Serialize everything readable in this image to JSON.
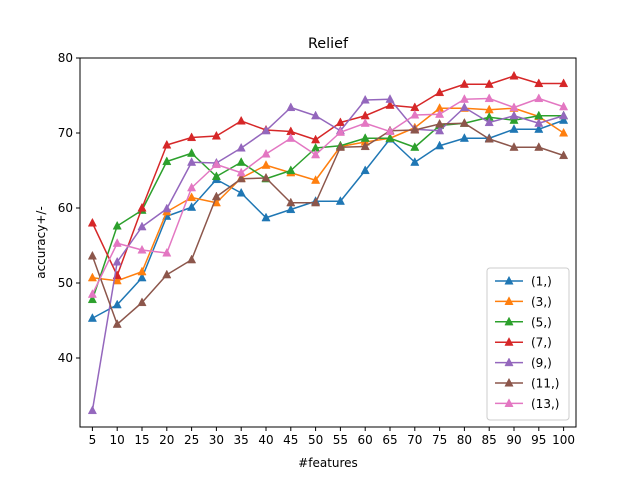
{
  "chart_data": {
    "type": "line",
    "title": "Relief",
    "xlabel": "#features",
    "ylabel": "accuracy+/-",
    "x": [
      5,
      10,
      15,
      20,
      25,
      30,
      35,
      40,
      45,
      50,
      55,
      60,
      65,
      70,
      75,
      80,
      85,
      90,
      95,
      100
    ],
    "xlim": [
      2.5,
      102.5
    ],
    "ylim": [
      30.8,
      80
    ],
    "yticks": [
      40,
      50,
      60,
      70,
      80
    ],
    "grid": false,
    "legend_position": "lower right",
    "marker": "triangle-up",
    "series": [
      {
        "name": "(1,)",
        "color": "#1f77b4",
        "values": [
          45.3,
          47.1,
          50.7,
          58.9,
          60.1,
          63.8,
          62.0,
          58.7,
          59.8,
          60.9,
          60.9,
          65.0,
          69.2,
          66.1,
          68.3,
          69.3,
          69.3,
          70.5,
          70.5,
          71.7
        ]
      },
      {
        "name": "(3,)",
        "color": "#ff7f0e",
        "values": [
          50.7,
          50.3,
          51.5,
          59.5,
          61.4,
          60.7,
          64.0,
          65.7,
          64.7,
          63.7,
          68.2,
          68.8,
          69.3,
          70.7,
          73.3,
          73.3,
          73.1,
          73.3,
          72.2,
          70.0
        ]
      },
      {
        "name": "(5,)",
        "color": "#2ca02c",
        "values": [
          47.8,
          57.6,
          59.7,
          66.2,
          67.3,
          64.2,
          66.1,
          63.9,
          65.0,
          68.0,
          68.3,
          69.3,
          69.3,
          68.1,
          71.0,
          71.3,
          72.1,
          71.7,
          72.3,
          72.3
        ]
      },
      {
        "name": "(7,)",
        "color": "#d62728",
        "values": [
          58.0,
          51.0,
          60.0,
          68.4,
          69.4,
          69.6,
          71.6,
          70.4,
          70.2,
          69.1,
          71.4,
          72.3,
          73.7,
          73.4,
          75.4,
          76.5,
          76.5,
          77.6,
          76.6,
          76.6
        ]
      },
      {
        "name": "(9,)",
        "color": "#9467bd",
        "values": [
          33.0,
          52.8,
          57.5,
          59.9,
          66.1,
          66.0,
          68.0,
          70.3,
          73.4,
          72.3,
          70.3,
          74.4,
          74.5,
          70.5,
          70.3,
          73.4,
          71.4,
          72.3,
          71.3,
          72.3
        ]
      },
      {
        "name": "(11,)",
        "color": "#8c564b",
        "values": [
          53.6,
          44.5,
          47.4,
          51.1,
          53.1,
          61.5,
          63.9,
          64.0,
          60.7,
          60.7,
          68.1,
          68.2,
          70.3,
          70.4,
          71.2,
          71.3,
          69.2,
          68.1,
          68.1,
          67.0
        ]
      },
      {
        "name": "(13,)",
        "color": "#e377c2",
        "values": [
          48.5,
          55.3,
          54.4,
          54.0,
          62.7,
          65.8,
          64.7,
          67.2,
          69.3,
          67.1,
          70.1,
          71.3,
          70.2,
          72.4,
          72.5,
          74.5,
          74.6,
          73.4,
          74.6,
          73.5
        ]
      }
    ]
  }
}
